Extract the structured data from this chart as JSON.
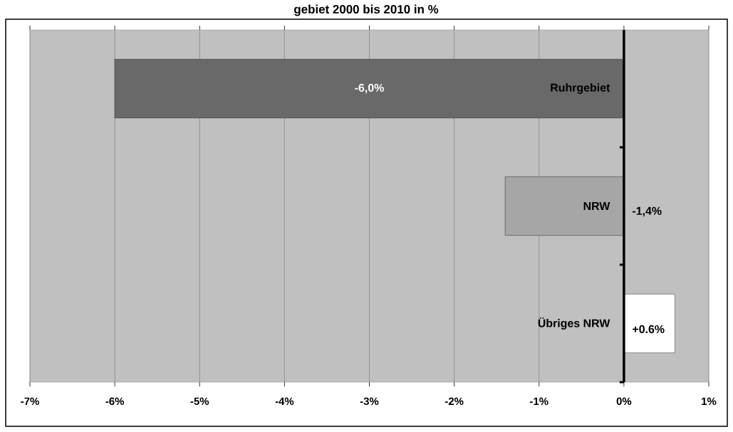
{
  "chart_data": {
    "type": "bar",
    "orientation": "horizontal",
    "title": "gebiet 2000 bis 2010 in %",
    "categories": [
      "Ruhrgebiet",
      "NRW",
      "Übriges NRW"
    ],
    "values": [
      -6.0,
      -1.4,
      0.6
    ],
    "colors": [
      "#696969",
      "#a6a6a6",
      "#ffffff"
    ],
    "value_labels": [
      "-6,0%",
      "-1,4%",
      "+0.6%"
    ],
    "xlim": [
      -7,
      1
    ],
    "xticks": [
      {
        "value": -7,
        "label": "-7%"
      },
      {
        "value": -6,
        "label": "-6%"
      },
      {
        "value": -5,
        "label": "-5%"
      },
      {
        "value": -4,
        "label": "-4%"
      },
      {
        "value": -3,
        "label": "-3%"
      },
      {
        "value": -2,
        "label": "-2%"
      },
      {
        "value": -1,
        "label": "-1%"
      },
      {
        "value": 0,
        "label": "0%"
      },
      {
        "value": 1,
        "label": "1%"
      }
    ],
    "grid": "x"
  }
}
